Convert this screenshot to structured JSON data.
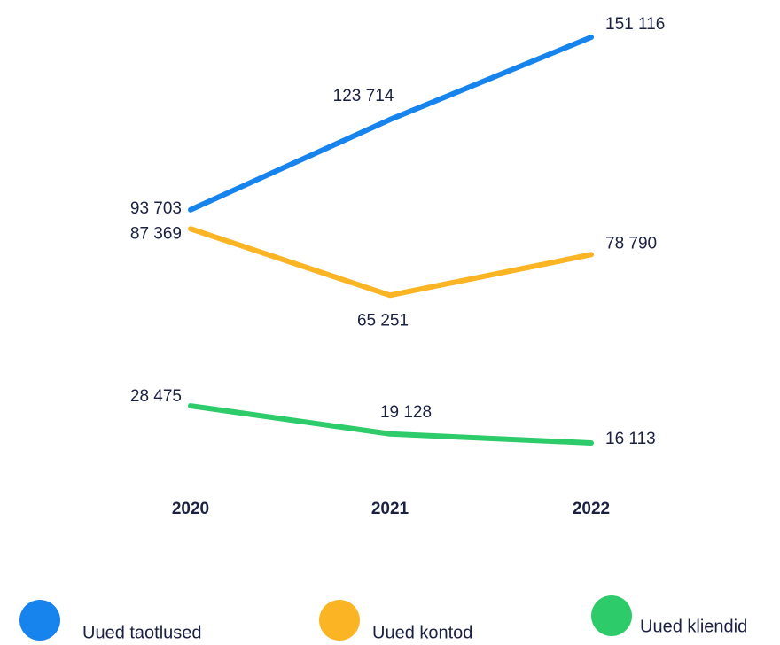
{
  "chart_data": {
    "type": "line",
    "categories": [
      "2020",
      "2021",
      "2022"
    ],
    "series": [
      {
        "name": "Uued taotlused",
        "color": "#1784ee",
        "values": [
          93703,
          123714,
          151116
        ],
        "value_labels": [
          "93 703",
          "123 714",
          "151 116"
        ]
      },
      {
        "name": "Uued kontod",
        "color": "#fbb524",
        "values": [
          87369,
          65251,
          78790
        ],
        "value_labels": [
          "87 369",
          "65 251",
          "78 790"
        ]
      },
      {
        "name": "Uued kliendid",
        "color": "#2ecb6b",
        "values": [
          28475,
          19128,
          16113
        ],
        "value_labels": [
          "28 475",
          "19 128",
          "16 113"
        ]
      }
    ]
  }
}
